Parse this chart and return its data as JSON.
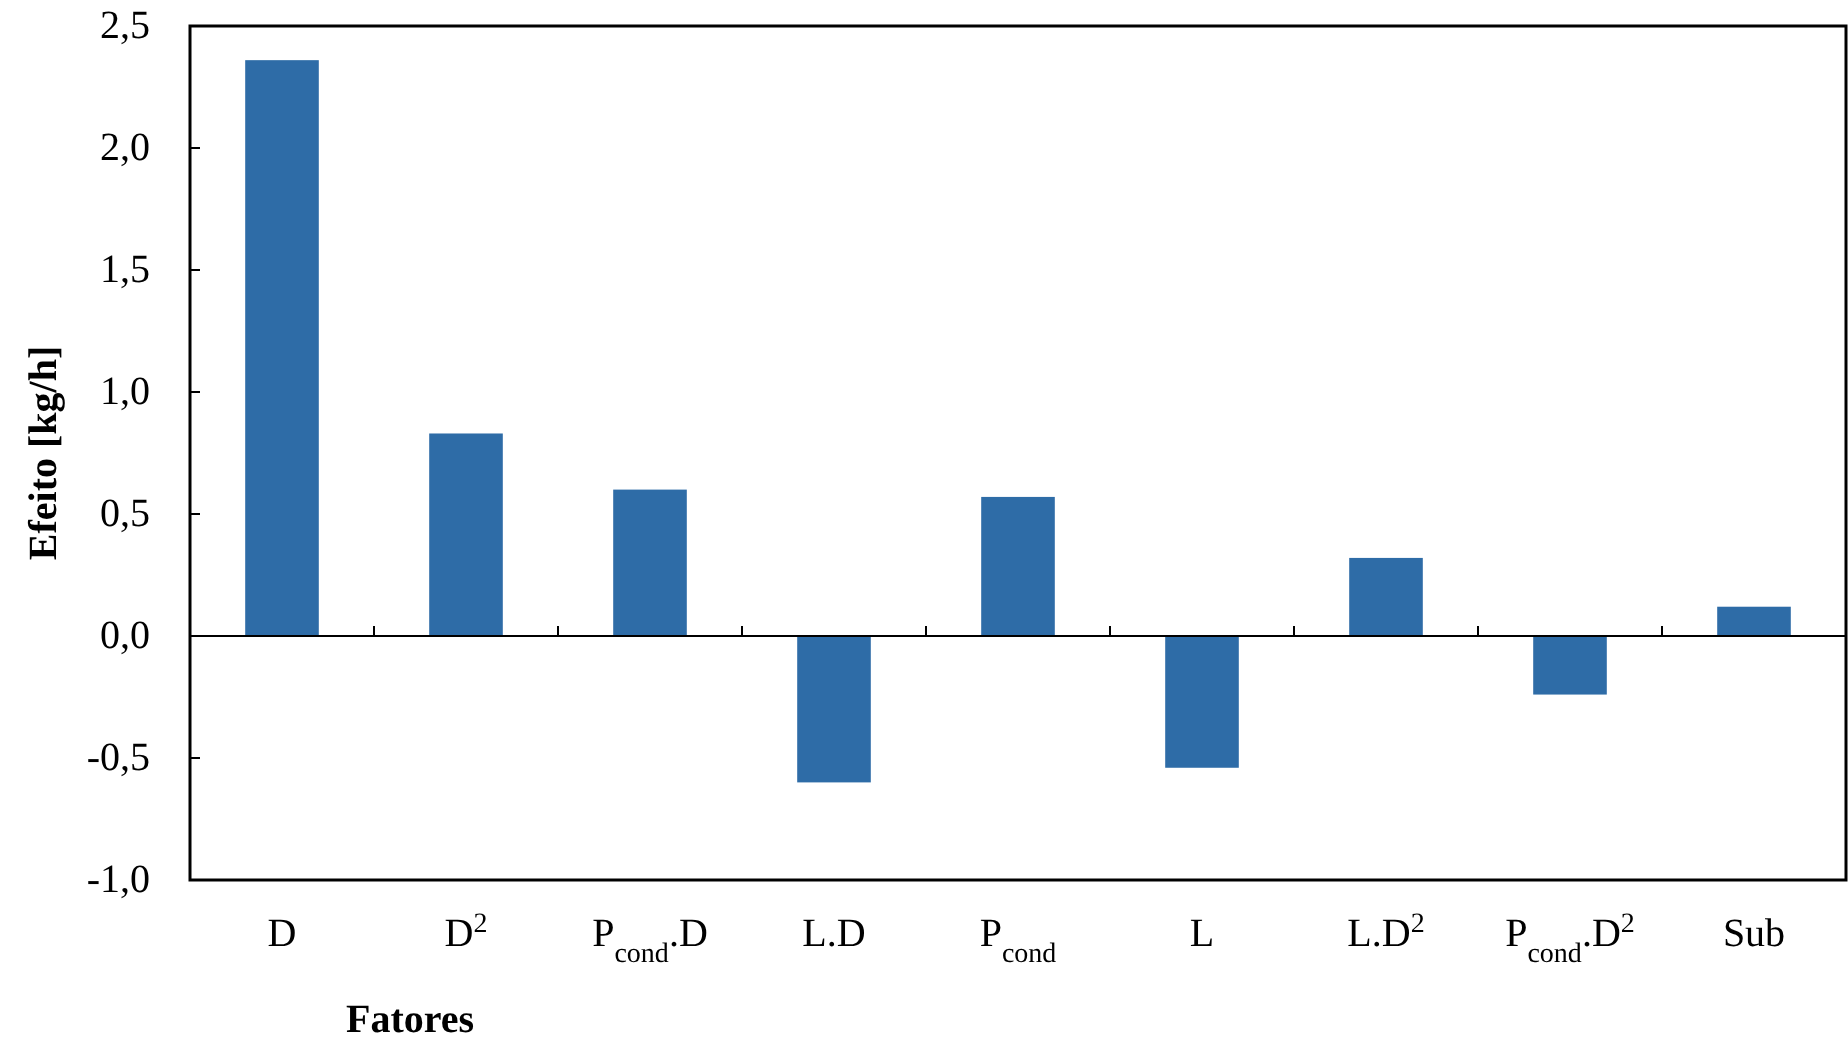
{
  "chart_data": {
    "type": "bar",
    "xlabel": "Fatores",
    "ylabel": "Efeito [kg/h]",
    "categories": [
      "D",
      "D$^{2}$",
      "P$_{cond}$.D",
      "L.D",
      "P$_{cond}$",
      "L",
      "L.D$^{2}$",
      "P$_{cond}$.D$^{2}$",
      "Sub"
    ],
    "values": [
      2.36,
      0.83,
      0.6,
      -0.6,
      0.57,
      -0.54,
      0.32,
      -0.24,
      0.12
    ],
    "color": "#2e6ca7",
    "ylim": [
      -1.0,
      2.5
    ],
    "yticks": [
      {
        "value": -1.0,
        "label": "-1,0"
      },
      {
        "value": -0.5,
        "label": "-0,5"
      },
      {
        "value": 0,
        "label": "0,0"
      },
      {
        "value": 0.5,
        "label": "0,5"
      },
      {
        "value": 1.0,
        "label": "1,0"
      },
      {
        "value": 1.5,
        "label": "1,5"
      },
      {
        "value": 2.0,
        "label": "2,0"
      },
      {
        "value": 2.5,
        "label": "2,5"
      }
    ],
    "orientation": "vertical"
  }
}
